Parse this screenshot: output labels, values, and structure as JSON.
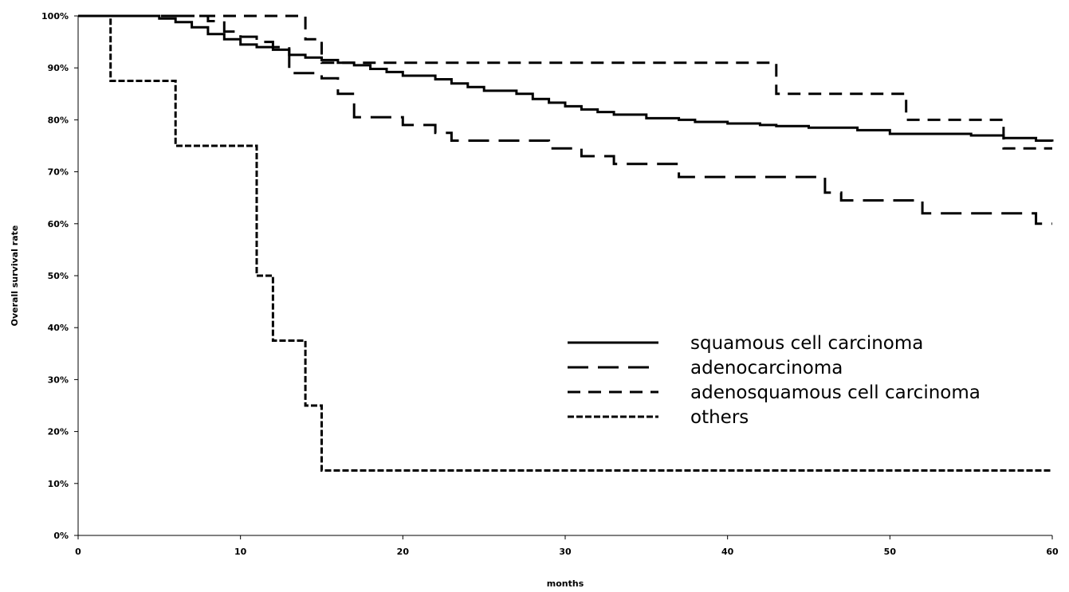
{
  "chart_data": {
    "type": "line",
    "xlabel": "months",
    "ylabel": "Overall survival rate",
    "xlim": [
      0,
      60
    ],
    "ylim": [
      0,
      100
    ],
    "x_ticks": [
      0,
      10,
      20,
      30,
      40,
      50,
      60
    ],
    "y_ticks": [
      0,
      10,
      20,
      30,
      40,
      50,
      60,
      70,
      80,
      90,
      100
    ],
    "y_tick_labels": [
      "0%",
      "10%",
      "20%",
      "30%",
      "40%",
      "50%",
      "60%",
      "70%",
      "80%",
      "90%",
      "100%"
    ],
    "x_tick_labels": [
      "0",
      "10",
      "20",
      "30",
      "40",
      "50",
      "60"
    ],
    "grid": false,
    "legend_position": "bottom-right",
    "step": true,
    "series": [
      {
        "name": "squamous cell carcinoma",
        "dash": "solid",
        "x": [
          0,
          5,
          6,
          7,
          8,
          9,
          10,
          11,
          12,
          13,
          14,
          15,
          16,
          17,
          18,
          19,
          20,
          22,
          23,
          24,
          25,
          27,
          28,
          29,
          30,
          31,
          32,
          33,
          35,
          37,
          38,
          40,
          42,
          43,
          45,
          48,
          50,
          55,
          57,
          59,
          60
        ],
        "y": [
          100,
          99.5,
          98.8,
          97.8,
          96.5,
          95.5,
          94.5,
          94,
          93.5,
          92.5,
          92,
          91.5,
          91,
          90.5,
          89.8,
          89.2,
          88.5,
          87.8,
          87,
          86.3,
          85.6,
          85,
          84,
          83.3,
          82.6,
          82,
          81.5,
          81,
          80.3,
          80,
          79.6,
          79.3,
          79,
          78.8,
          78.5,
          78,
          77.3,
          77,
          76.5,
          76,
          75.8
        ]
      },
      {
        "name": "adenocarcinoma",
        "dash": "long-dash",
        "x": [
          0,
          8,
          9,
          10,
          11,
          12,
          13,
          15,
          16,
          17,
          20,
          22,
          23,
          27,
          29,
          31,
          33,
          35,
          37,
          44,
          46,
          47,
          50,
          52,
          58,
          59,
          60
        ],
        "y": [
          100,
          99,
          97,
          96,
          95,
          94,
          89,
          88,
          85,
          80.5,
          79,
          77.5,
          76,
          76,
          74.5,
          73,
          71.5,
          71.5,
          69,
          69,
          66,
          64.5,
          64.5,
          62,
          62,
          60,
          60
        ]
      },
      {
        "name": "adenosquamous cell carcinoma",
        "dash": "dash",
        "x": [
          0,
          14,
          15,
          16,
          43,
          51,
          57,
          60
        ],
        "y": [
          100,
          95.5,
          91,
          91,
          85,
          80,
          74.5,
          74.5
        ]
      },
      {
        "name": "others",
        "dash": "short-dash",
        "x": [
          0,
          2,
          6,
          11,
          12,
          14,
          15,
          60
        ],
        "y": [
          100,
          87.5,
          75,
          50,
          37.5,
          25,
          12.5,
          12.5
        ]
      }
    ]
  }
}
